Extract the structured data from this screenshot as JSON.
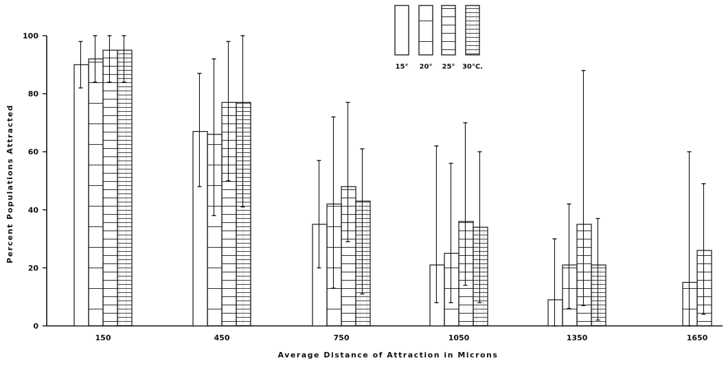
{
  "chart_data": {
    "type": "bar",
    "title": "",
    "xlabel": "Average Distance of Attraction in Microns",
    "ylabel": "Percent Populations Attracted",
    "ylim": [
      0,
      100
    ],
    "yticks": [
      0,
      20,
      40,
      60,
      80,
      100
    ],
    "categories": [
      "150",
      "450",
      "750",
      "1050",
      "1350",
      "1650"
    ],
    "series": [
      {
        "name": "15°",
        "values": [
          90,
          67,
          35,
          21,
          9,
          0
        ],
        "err_low": [
          82,
          48,
          20,
          8,
          0,
          0
        ],
        "err_high": [
          98,
          87,
          57,
          62,
          30,
          0
        ]
      },
      {
        "name": "20°",
        "values": [
          92,
          66,
          42,
          25,
          21,
          15
        ],
        "err_low": [
          84,
          38,
          13,
          8,
          6,
          0
        ],
        "err_high": [
          100,
          92,
          72,
          56,
          42,
          60
        ]
      },
      {
        "name": "25°",
        "values": [
          95,
          77,
          48,
          36,
          35,
          26
        ],
        "err_low": [
          84,
          50,
          29,
          14,
          7,
          4
        ],
        "err_high": [
          100,
          98,
          77,
          70,
          88,
          49
        ]
      },
      {
        "name": "30°C.",
        "values": [
          95,
          77,
          43,
          34,
          21,
          0
        ],
        "err_low": [
          84,
          41,
          11,
          8,
          2,
          0
        ],
        "err_high": [
          100,
          100,
          61,
          60,
          37,
          0
        ]
      }
    ],
    "legend": {
      "position": "top-center",
      "labels": [
        "15°",
        "20°",
        "25°",
        "30°C."
      ]
    },
    "grid": false,
    "colors": {
      "ink": "#111111",
      "background": "#ffffff"
    }
  }
}
